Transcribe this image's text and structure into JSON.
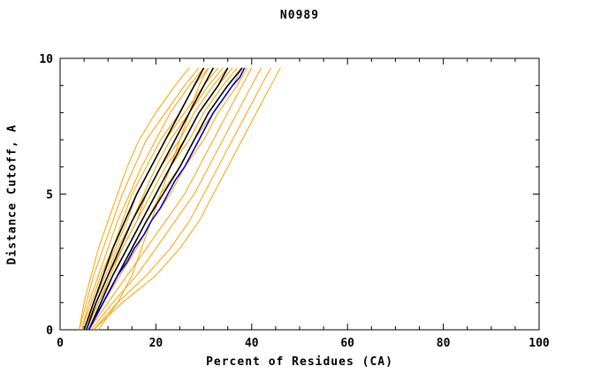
{
  "chart_data": {
    "type": "line",
    "title": "N0989",
    "xlabel": "Percent of Residues (CA)",
    "ylabel": "Distance Cutoff, A",
    "xlim": [
      0,
      100
    ],
    "ylim": [
      0,
      10
    ],
    "xticks": [
      0,
      20,
      40,
      60,
      80,
      100
    ],
    "yticks": [
      0,
      5,
      10
    ],
    "xminor_step": 5,
    "yminor_step": 1,
    "grid": false,
    "legend": "none",
    "colors": {
      "orange": "#ffa000",
      "black": "#000000",
      "blue": "#0000cc"
    },
    "series": [
      {
        "name": "orange-01",
        "color": "#ffa000",
        "width": 1,
        "points": [
          [
            4,
            0
          ],
          [
            5,
            1
          ],
          [
            6.5,
            2
          ],
          [
            8,
            3
          ],
          [
            10,
            4
          ],
          [
            12,
            5
          ],
          [
            14,
            6
          ],
          [
            16.5,
            7
          ],
          [
            20,
            8
          ],
          [
            24,
            9
          ],
          [
            27,
            9.65
          ]
        ]
      },
      {
        "name": "orange-02",
        "color": "#ffa000",
        "width": 1,
        "points": [
          [
            4,
            0
          ],
          [
            5.5,
            1
          ],
          [
            7,
            2
          ],
          [
            9,
            3
          ],
          [
            11,
            4
          ],
          [
            13,
            5
          ],
          [
            15.5,
            6
          ],
          [
            18,
            7
          ],
          [
            22,
            8
          ],
          [
            26,
            9
          ],
          [
            29,
            9.65
          ]
        ]
      },
      {
        "name": "orange-03",
        "color": "#ffa000",
        "width": 1,
        "points": [
          [
            4.5,
            0
          ],
          [
            6,
            1
          ],
          [
            8,
            2
          ],
          [
            10,
            3
          ],
          [
            12,
            4
          ],
          [
            14.5,
            5
          ],
          [
            17,
            6
          ],
          [
            20,
            7
          ],
          [
            23,
            8
          ],
          [
            27,
            9
          ],
          [
            30,
            9.65
          ]
        ]
      },
      {
        "name": "orange-04",
        "color": "#ffa000",
        "width": 1,
        "points": [
          [
            4.5,
            0
          ],
          [
            6.5,
            1
          ],
          [
            8.5,
            2
          ],
          [
            11,
            3
          ],
          [
            13,
            4
          ],
          [
            15,
            5
          ],
          [
            18,
            6
          ],
          [
            21,
            7
          ],
          [
            25,
            8
          ],
          [
            28,
            9
          ],
          [
            31,
            9.65
          ]
        ]
      },
      {
        "name": "orange-05",
        "color": "#ffa000",
        "width": 1,
        "points": [
          [
            5,
            0
          ],
          [
            7,
            1
          ],
          [
            9,
            2
          ],
          [
            11.5,
            3
          ],
          [
            14,
            4
          ],
          [
            16,
            5
          ],
          [
            19,
            6
          ],
          [
            22,
            7
          ],
          [
            26,
            8
          ],
          [
            30,
            9
          ],
          [
            33,
            9.65
          ]
        ]
      },
      {
        "name": "orange-06",
        "color": "#ffa000",
        "width": 1,
        "points": [
          [
            5,
            0
          ],
          [
            7,
            1
          ],
          [
            9.5,
            2
          ],
          [
            12,
            3
          ],
          [
            15,
            4
          ],
          [
            17.5,
            5
          ],
          [
            20,
            6
          ],
          [
            23,
            7
          ],
          [
            27,
            8
          ],
          [
            31,
            9
          ],
          [
            34,
            9.65
          ]
        ]
      },
      {
        "name": "orange-07",
        "color": "#ffa000",
        "width": 1,
        "points": [
          [
            5,
            0
          ],
          [
            7.5,
            1
          ],
          [
            10,
            2
          ],
          [
            13,
            3
          ],
          [
            16,
            4
          ],
          [
            18,
            5
          ],
          [
            21,
            6
          ],
          [
            25,
            7
          ],
          [
            28,
            8
          ],
          [
            32,
            9
          ],
          [
            35,
            9.65
          ]
        ]
      },
      {
        "name": "orange-08",
        "color": "#ffa000",
        "width": 1,
        "points": [
          [
            5.5,
            0
          ],
          [
            8,
            1
          ],
          [
            10.5,
            2
          ],
          [
            13,
            3
          ],
          [
            16,
            4
          ],
          [
            19,
            5
          ],
          [
            22,
            6
          ],
          [
            26,
            7
          ],
          [
            29,
            8
          ],
          [
            33,
            9
          ],
          [
            36,
            9.65
          ]
        ]
      },
      {
        "name": "orange-09",
        "color": "#ffa000",
        "width": 1,
        "points": [
          [
            5.5,
            0
          ],
          [
            8,
            1
          ],
          [
            11,
            2
          ],
          [
            14,
            3
          ],
          [
            17,
            4
          ],
          [
            20,
            5
          ],
          [
            23,
            6
          ],
          [
            27,
            7
          ],
          [
            30,
            8
          ],
          [
            34,
            9
          ],
          [
            37,
            9.65
          ]
        ]
      },
      {
        "name": "orange-10",
        "color": "#ffa000",
        "width": 1,
        "points": [
          [
            6,
            0
          ],
          [
            9,
            1
          ],
          [
            12,
            2
          ],
          [
            15,
            3
          ],
          [
            18,
            4
          ],
          [
            21,
            5
          ],
          [
            25,
            6
          ],
          [
            28,
            7
          ],
          [
            32,
            8
          ],
          [
            36,
            9
          ],
          [
            38,
            9.65
          ]
        ]
      },
      {
        "name": "orange-11",
        "color": "#ffa000",
        "width": 1,
        "points": [
          [
            6,
            0
          ],
          [
            9,
            1
          ],
          [
            12.5,
            2
          ],
          [
            16,
            3
          ],
          [
            19,
            4
          ],
          [
            23,
            5
          ],
          [
            26,
            6
          ],
          [
            30,
            7
          ],
          [
            33,
            8
          ],
          [
            37,
            9
          ],
          [
            39,
            9.65
          ]
        ]
      },
      {
        "name": "orange-12",
        "color": "#ffa000",
        "width": 1,
        "points": [
          [
            6,
            0
          ],
          [
            10,
            1
          ],
          [
            14,
            2
          ],
          [
            18,
            3
          ],
          [
            22,
            4
          ],
          [
            26,
            5
          ],
          [
            29,
            6
          ],
          [
            32,
            7
          ],
          [
            35,
            8
          ],
          [
            38,
            9
          ],
          [
            40,
            9.65
          ]
        ]
      },
      {
        "name": "orange-13",
        "color": "#ffa000",
        "width": 1,
        "points": [
          [
            6.5,
            0
          ],
          [
            11,
            1
          ],
          [
            16,
            2
          ],
          [
            20,
            3
          ],
          [
            24,
            4
          ],
          [
            28,
            5
          ],
          [
            31,
            6
          ],
          [
            34,
            7
          ],
          [
            37,
            8
          ],
          [
            40,
            9
          ],
          [
            42,
            9.65
          ]
        ]
      },
      {
        "name": "orange-14",
        "color": "#ffa000",
        "width": 1,
        "points": [
          [
            7,
            0
          ],
          [
            12,
            1
          ],
          [
            18,
            2
          ],
          [
            23,
            3
          ],
          [
            27,
            4
          ],
          [
            30,
            5
          ],
          [
            33,
            6
          ],
          [
            36,
            7
          ],
          [
            39,
            8
          ],
          [
            42,
            9
          ],
          [
            44,
            9.65
          ]
        ]
      },
      {
        "name": "orange-15",
        "color": "#ffa000",
        "width": 1,
        "points": [
          [
            7,
            0
          ],
          [
            13,
            1
          ],
          [
            20,
            2
          ],
          [
            25,
            3
          ],
          [
            29,
            4
          ],
          [
            32,
            5
          ],
          [
            35,
            6
          ],
          [
            38,
            7
          ],
          [
            41,
            8
          ],
          [
            44,
            9
          ],
          [
            46,
            9.65
          ]
        ]
      },
      {
        "name": "orange-16",
        "color": "#ffa000",
        "width": 1,
        "points": [
          [
            8,
            0
          ],
          [
            12,
            1
          ],
          [
            15,
            2
          ],
          [
            17,
            3
          ],
          [
            19,
            4
          ],
          [
            21,
            5
          ],
          [
            23,
            6
          ],
          [
            25,
            7
          ],
          [
            27,
            8
          ],
          [
            29,
            9
          ],
          [
            31,
            9.65
          ]
        ]
      },
      {
        "name": "black-01",
        "color": "#000000",
        "width": 1.6,
        "points": [
          [
            5,
            0
          ],
          [
            7,
            1
          ],
          [
            9,
            2
          ],
          [
            11,
            3
          ],
          [
            13.5,
            4
          ],
          [
            16,
            5
          ],
          [
            19,
            6
          ],
          [
            22,
            7
          ],
          [
            25,
            8
          ],
          [
            28,
            9
          ],
          [
            30,
            9.65
          ]
        ]
      },
      {
        "name": "black-02",
        "color": "#000000",
        "width": 1.6,
        "points": [
          [
            5.5,
            0
          ],
          [
            7.5,
            1
          ],
          [
            10,
            2
          ],
          [
            12.5,
            3
          ],
          [
            15,
            4
          ],
          [
            18,
            5
          ],
          [
            21,
            6
          ],
          [
            24,
            7
          ],
          [
            27,
            8
          ],
          [
            30,
            9
          ],
          [
            32,
            9.65
          ]
        ]
      },
      {
        "name": "black-03",
        "color": "#000000",
        "width": 1.6,
        "points": [
          [
            6,
            0
          ],
          [
            8.5,
            1
          ],
          [
            11,
            2
          ],
          [
            14,
            3
          ],
          [
            17,
            4
          ],
          [
            20,
            5
          ],
          [
            23,
            6
          ],
          [
            26,
            7
          ],
          [
            29,
            8
          ],
          [
            33,
            9
          ],
          [
            35,
            9.65
          ]
        ]
      },
      {
        "name": "black-04",
        "color": "#000000",
        "width": 1.6,
        "points": [
          [
            6,
            0
          ],
          [
            9,
            1
          ],
          [
            12,
            2
          ],
          [
            15,
            3
          ],
          [
            18,
            4
          ],
          [
            21.5,
            5
          ],
          [
            25,
            6
          ],
          [
            28,
            7
          ],
          [
            31,
            8
          ],
          [
            35,
            9
          ],
          [
            38,
            9.65
          ]
        ]
      },
      {
        "name": "blue-01",
        "color": "#0000cc",
        "width": 1.6,
        "points": [
          [
            6,
            0
          ],
          [
            7.5,
            0.5
          ],
          [
            9,
            1
          ],
          [
            10.5,
            1.5
          ],
          [
            12,
            2
          ],
          [
            14,
            2.5
          ],
          [
            15.5,
            3
          ],
          [
            17.5,
            3.5
          ],
          [
            19,
            4
          ],
          [
            21,
            4.5
          ],
          [
            22.5,
            5
          ],
          [
            24,
            5.5
          ],
          [
            26,
            6
          ],
          [
            27.5,
            6.5
          ],
          [
            29,
            7
          ],
          [
            30.5,
            7.5
          ],
          [
            32,
            8
          ],
          [
            34,
            8.5
          ],
          [
            36,
            9
          ],
          [
            37.5,
            9.3
          ],
          [
            38.5,
            9.65
          ]
        ]
      }
    ]
  }
}
